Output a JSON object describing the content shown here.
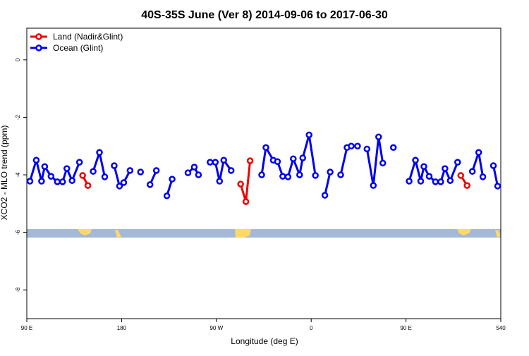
{
  "chart_data": {
    "type": "line",
    "title": "40S-35S June (Ver 8)   2014-09-06 to 2017-06-30",
    "x_label": "Longitude (deg E)",
    "y_label": "XCO2 - MLO trend (ppm)",
    "xlim": [
      90,
      540
    ],
    "ylim": [
      -9,
      1.1
    ],
    "xticks": [
      {
        "value": 90,
        "label": "90 E"
      },
      180,
      {
        "value": 270,
        "label": "90 W"
      },
      {
        "value": 360,
        "label": "0"
      },
      {
        "value": 450,
        "label": "90 E"
      },
      540
    ],
    "yticks": [
      0,
      -2,
      -4,
      -6,
      -8
    ],
    "legend": "top-left",
    "series": [
      {
        "name": "Land (Nadir&Glint)",
        "color": "#ee0000",
        "x": [
          143,
          148,
          null,
          293,
          298,
          302,
          null,
          502,
          508
        ],
        "values": [
          -4.02,
          -4.37,
          null,
          -4.32,
          -4.93,
          -3.51,
          null,
          -4.02,
          -4.37
        ]
      },
      {
        "name": "Ocean (Glint)",
        "color": "#0000ee",
        "x": [
          93,
          99,
          104,
          107,
          113,
          119,
          124,
          128,
          133,
          140,
          null,
          153,
          159,
          164,
          null,
          173,
          178,
          182,
          188,
          null,
          198,
          null,
          207,
          213,
          null,
          223,
          228,
          null,
          243,
          249,
          253,
          null,
          264,
          269,
          273,
          277,
          284,
          null,
          313,
          317,
          324,
          328,
          333,
          338,
          343,
          349,
          352,
          358,
          364,
          null,
          373,
          378,
          null,
          388,
          394,
          398,
          404,
          null,
          413,
          419,
          424,
          428,
          null,
          438,
          null,
          453,
          459,
          464,
          467,
          472,
          478,
          483,
          487,
          492,
          499,
          null,
          513,
          519,
          523,
          null,
          533,
          537
        ],
        "values": [
          -4.22,
          -3.49,
          -4.22,
          -3.71,
          -4.05,
          -4.24,
          -4.24,
          -3.78,
          -4.2,
          -3.56,
          null,
          -3.88,
          -3.22,
          -4.07,
          null,
          -3.68,
          -4.39,
          -4.27,
          -3.85,
          null,
          -3.9,
          null,
          -4.34,
          -3.85,
          null,
          -4.73,
          -4.15,
          null,
          -3.93,
          -3.73,
          -4.0,
          null,
          -3.56,
          -3.56,
          -4.22,
          -3.49,
          -3.85,
          null,
          -4.0,
          -3.05,
          -3.49,
          -3.54,
          -4.05,
          -4.07,
          -3.44,
          -4.0,
          -3.41,
          -2.61,
          -4.02,
          null,
          -4.71,
          -3.9,
          null,
          -4.0,
          -3.05,
          -3.0,
          -3.0,
          null,
          -3.1,
          -4.37,
          -2.68,
          -3.59,
          null,
          -3.05,
          null,
          -4.22,
          -3.49,
          -4.22,
          -3.71,
          -4.05,
          -4.24,
          -4.24,
          -3.78,
          -4.2,
          -3.56,
          null,
          -3.88,
          -3.22,
          -4.07,
          null,
          -3.68,
          -4.39
        ]
      }
    ]
  }
}
